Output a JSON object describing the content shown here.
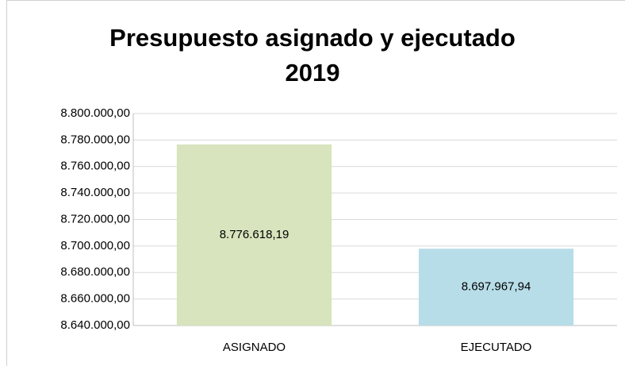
{
  "chart_data": {
    "type": "bar",
    "title": "Presupuesto asignado y ejecutado 2019",
    "categories": [
      "ASIGNADO",
      "EJECUTADO"
    ],
    "values": [
      8776618.19,
      8697967.94
    ],
    "value_labels": [
      "8.776.618,19",
      "8.697.967,94"
    ],
    "colors": [
      "#d7e4bd",
      "#b7dde8"
    ],
    "ylim": [
      8640000,
      8800000
    ],
    "yticks": [
      {
        "value": 8640000,
        "label": "8.640.000,00"
      },
      {
        "value": 8660000,
        "label": "8.660.000,00"
      },
      {
        "value": 8680000,
        "label": "8.680.000,00"
      },
      {
        "value": 8700000,
        "label": "8.700.000,00"
      },
      {
        "value": 8720000,
        "label": "8.720.000,00"
      },
      {
        "value": 8740000,
        "label": "8.740.000,00"
      },
      {
        "value": 8760000,
        "label": "8.760.000,00"
      },
      {
        "value": 8780000,
        "label": "8.780.000,00"
      },
      {
        "value": 8800000,
        "label": "8.800.000,00"
      }
    ],
    "grid": true
  }
}
